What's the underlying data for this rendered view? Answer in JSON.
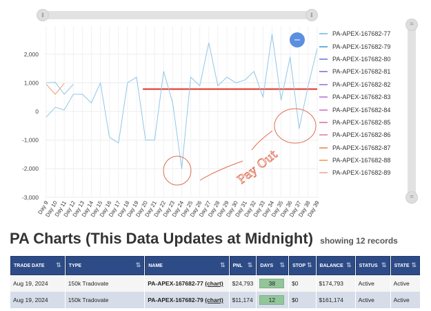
{
  "colors": {
    "line_main": "#8ec7e8",
    "line_orange": "#f0a070",
    "threshold": "#e0301e",
    "annotation": "#e06a50",
    "header_bg": "#2d4b86",
    "days_badge": "#93c59a",
    "zoom_dot": "#5b8fe0"
  },
  "icons": {
    "zoom_left": "drag-handle-icon",
    "zoom_right": "drag-handle-icon",
    "v_top": "drag-handle-icon",
    "v_bottom": "drag-handle-icon",
    "sort": "sort-arrows-icon"
  },
  "annotation_text": "Pay Out",
  "chart_data": {
    "type": "line",
    "x": [
      "Day 9",
      "Day 10",
      "Day 11",
      "Day 12",
      "Day 13",
      "Day 14",
      "Day 15",
      "Day 16",
      "Day 17",
      "Day 18",
      "Day 19",
      "Day 20",
      "Day 21",
      "Day 22",
      "Day 23",
      "Day 24",
      "Day 25",
      "Day 26",
      "Day 27",
      "Day 28",
      "Day 29",
      "Day 30",
      "Day 31",
      "Day 32",
      "Day 33",
      "Day 34",
      "Day 35",
      "Day 36",
      "Day 37",
      "Day 38",
      "Day 39"
    ],
    "ylim": [
      -3000,
      2800
    ],
    "yticks": [
      -3000,
      -2000,
      -1000,
      0,
      1000,
      2000
    ],
    "ytick_labels": [
      "-3,000",
      "-2,000",
      "-1,000",
      "0",
      "1,000",
      "2,000"
    ],
    "threshold": {
      "value": 780,
      "from": "Day 20",
      "to": "Day 39"
    },
    "series": [
      {
        "name": "PA-APEX-167682-77",
        "color": "#8ec7e8",
        "values": [
          -200,
          150,
          50,
          600,
          600,
          300,
          1000,
          -900,
          -1100,
          1000,
          1200,
          -1000,
          -1000,
          1400,
          300,
          -2000,
          1200,
          900,
          2400,
          900,
          1200,
          1000,
          1100,
          1400,
          500,
          2700,
          400,
          1900,
          -600,
          900,
          2200
        ]
      },
      {
        "name": "PA-APEX-167682-79",
        "color": "#8ec7e8",
        "values": [
          1000,
          1020,
          600,
          950,
          null,
          null,
          null,
          null,
          null,
          null,
          null,
          null,
          null,
          null,
          null,
          null,
          null,
          null,
          null,
          null,
          null,
          null,
          null,
          null,
          null,
          null,
          null,
          null,
          null,
          null,
          null
        ]
      },
      {
        "name": "PA-APEX-167682-87",
        "color": "#f0a070",
        "values": [
          950,
          600,
          980,
          null,
          null,
          null,
          null,
          null,
          null,
          null,
          null,
          null,
          null,
          null,
          null,
          null,
          null,
          null,
          null,
          null,
          null,
          null,
          null,
          null,
          null,
          null,
          null,
          null,
          null,
          null,
          null
        ]
      }
    ],
    "legend": [
      {
        "name": "PA-APEX-167682-77",
        "color": "#8ec7e8"
      },
      {
        "name": "PA-APEX-167682-79",
        "color": "#6aaee0"
      },
      {
        "name": "PA-APEX-167682-80",
        "color": "#8a94e0"
      },
      {
        "name": "PA-APEX-167682-81",
        "color": "#9a8ee0"
      },
      {
        "name": "PA-APEX-167682-82",
        "color": "#b08ee0"
      },
      {
        "name": "PA-APEX-167682-83",
        "color": "#c88ee0"
      },
      {
        "name": "PA-APEX-167682-84",
        "color": "#d88ed0"
      },
      {
        "name": "PA-APEX-167682-85",
        "color": "#e08ec0"
      },
      {
        "name": "PA-APEX-167682-86",
        "color": "#e89aa8"
      },
      {
        "name": "PA-APEX-167682-87",
        "color": "#f0a070"
      },
      {
        "name": "PA-APEX-167682-88",
        "color": "#f0b080"
      },
      {
        "name": "PA-APEX-167682-89",
        "color": "#f0b8b0"
      }
    ],
    "legend_placement": "right",
    "grid": true
  },
  "section": {
    "title": "PA Charts (This Data Updates at Midnight)",
    "subtitle": "showing 12 records"
  },
  "table": {
    "columns": [
      "TRADE DATE",
      "TYPE",
      "NAME",
      "PNL",
      "DAYS",
      "STOP",
      "BALANCE",
      "STATUS",
      "STATE"
    ],
    "rows": [
      {
        "trade_date": "Aug 19, 2024",
        "type": "150k Tradovate",
        "name": "PA-APEX-167682-77",
        "chart": "(chart)",
        "pnl": "$24,793",
        "days": "38",
        "stop": "$0",
        "balance": "$174,793",
        "status": "Active",
        "state": "Active"
      },
      {
        "trade_date": "Aug 19, 2024",
        "type": "150k Tradovate",
        "name": "PA-APEX-167682-79",
        "chart": "(chart)",
        "pnl": "$11,174",
        "days": "12",
        "stop": "$0",
        "balance": "$161,174",
        "status": "Active",
        "state": "Active"
      }
    ]
  }
}
